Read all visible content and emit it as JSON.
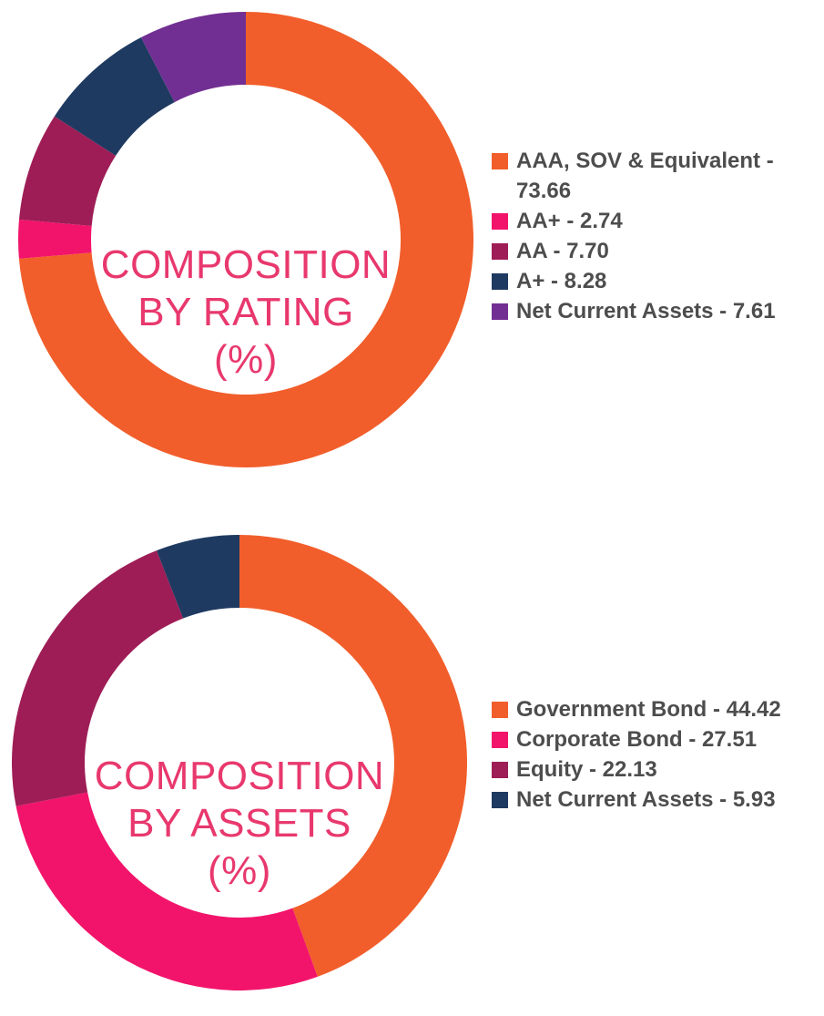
{
  "background_color": "#FFFFFF",
  "title_color": "#E8386D",
  "legend_text_color": "#4D4D4D",
  "chart_data": [
    {
      "type": "pie",
      "variant": "donut",
      "title": "COMPOSITION BY RATING (%)",
      "center_title_lines": [
        "COMPOSITION",
        "BY RATING",
        "(%)"
      ],
      "categories": [
        "AAA, SOV & Equivalent",
        "AA+",
        "AA",
        "A+",
        "Net Current Assets"
      ],
      "values": [
        73.66,
        2.74,
        7.7,
        8.28,
        7.61
      ],
      "colors": [
        "#F15E2B",
        "#F2146B",
        "#9E1D56",
        "#1F3A61",
        "#722F93"
      ],
      "legend_labels": [
        "AAA, SOV & Equivalent - 73.66",
        "AA+ - 2.74",
        "AA - 7.70",
        "A+ - 8.28",
        "Net Current Assets - 7.61"
      ],
      "legend_position": "right",
      "start_angle_deg": 0,
      "direction": "clockwise",
      "donut_hole_ratio": 0.68
    },
    {
      "type": "pie",
      "variant": "donut",
      "title": "COMPOSITION BY ASSETS (%)",
      "center_title_lines": [
        "COMPOSITION",
        "BY ASSETS",
        "(%)"
      ],
      "categories": [
        "Government Bond",
        "Corporate Bond",
        "Equity",
        "Net Current Assets"
      ],
      "values": [
        44.42,
        27.51,
        22.13,
        5.93
      ],
      "colors": [
        "#F15E2B",
        "#F2146B",
        "#9E1D56",
        "#1F3A61"
      ],
      "legend_labels": [
        "Government Bond - 44.42",
        "Corporate Bond - 27.51",
        "Equity - 22.13",
        "Net Current Assets - 5.93"
      ],
      "legend_position": "right",
      "start_angle_deg": 0,
      "direction": "clockwise",
      "donut_hole_ratio": 0.68
    }
  ]
}
